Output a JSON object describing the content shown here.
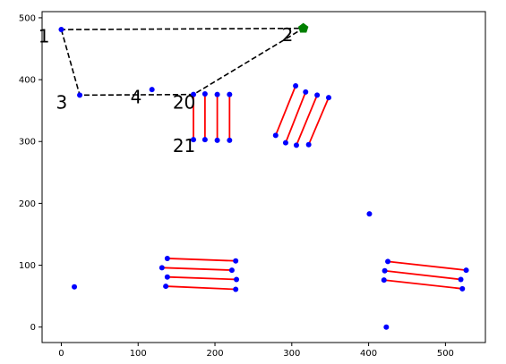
{
  "chart_data": {
    "type": "scatter",
    "title": "",
    "xlabel": "",
    "ylabel": "",
    "xlim": [
      -25,
      552
    ],
    "ylim": [
      -25,
      510
    ],
    "xticks": [
      0,
      100,
      200,
      300,
      400,
      500
    ],
    "yticks": [
      0,
      100,
      200,
      300,
      400,
      500
    ],
    "grid": false,
    "legend": "none",
    "colors": {
      "point": "#0000ff",
      "segment": "#ff0000",
      "path": "#000000",
      "goal": "#008000"
    },
    "points": [
      [
        0,
        481
      ],
      [
        24,
        375
      ],
      [
        118,
        384
      ],
      [
        172,
        376
      ],
      [
        187,
        377
      ],
      [
        203,
        376
      ],
      [
        219,
        376
      ],
      [
        172,
        303
      ],
      [
        187,
        303
      ],
      [
        203,
        302
      ],
      [
        219,
        302
      ],
      [
        305,
        390
      ],
      [
        318,
        380
      ],
      [
        333,
        375
      ],
      [
        348,
        371
      ],
      [
        279,
        310
      ],
      [
        292,
        298
      ],
      [
        306,
        294
      ],
      [
        322,
        295
      ],
      [
        138,
        111
      ],
      [
        227,
        107
      ],
      [
        131,
        96
      ],
      [
        222,
        92
      ],
      [
        138,
        81
      ],
      [
        228,
        77
      ],
      [
        136,
        66
      ],
      [
        227,
        61
      ],
      [
        425,
        106
      ],
      [
        527,
        92
      ],
      [
        421,
        91
      ],
      [
        520,
        77
      ],
      [
        420,
        76
      ],
      [
        522,
        62
      ],
      [
        401,
        183
      ],
      [
        17,
        65
      ],
      [
        423,
        0
      ]
    ],
    "segments": [
      [
        [
          172,
          376
        ],
        [
          172,
          303
        ]
      ],
      [
        [
          187,
          377
        ],
        [
          187,
          303
        ]
      ],
      [
        [
          203,
          376
        ],
        [
          203,
          302
        ]
      ],
      [
        [
          219,
          376
        ],
        [
          219,
          302
        ]
      ],
      [
        [
          305,
          390
        ],
        [
          279,
          310
        ]
      ],
      [
        [
          318,
          380
        ],
        [
          292,
          298
        ]
      ],
      [
        [
          333,
          375
        ],
        [
          306,
          294
        ]
      ],
      [
        [
          348,
          371
        ],
        [
          322,
          295
        ]
      ],
      [
        [
          138,
          111
        ],
        [
          227,
          107
        ]
      ],
      [
        [
          131,
          96
        ],
        [
          222,
          92
        ]
      ],
      [
        [
          138,
          81
        ],
        [
          228,
          77
        ]
      ],
      [
        [
          136,
          66
        ],
        [
          227,
          61
        ]
      ],
      [
        [
          425,
          106
        ],
        [
          527,
          92
        ]
      ],
      [
        [
          421,
          91
        ],
        [
          520,
          77
        ]
      ],
      [
        [
          420,
          76
        ],
        [
          522,
          62
        ]
      ]
    ],
    "path": [
      [
        0,
        481
      ],
      [
        24,
        375
      ],
      [
        172,
        376
      ],
      [
        315,
        483
      ],
      [
        0,
        481
      ]
    ],
    "goal": [
      315,
      483
    ],
    "annotations": [
      {
        "text": "1",
        "x": -30,
        "y": 460
      },
      {
        "text": "2",
        "x": 287,
        "y": 462
      },
      {
        "text": "3",
        "x": -7,
        "y": 353
      },
      {
        "text": "4",
        "x": 90,
        "y": 362
      },
      {
        "text": "20",
        "x": 145,
        "y": 353
      },
      {
        "text": "21",
        "x": 145,
        "y": 283
      }
    ]
  }
}
